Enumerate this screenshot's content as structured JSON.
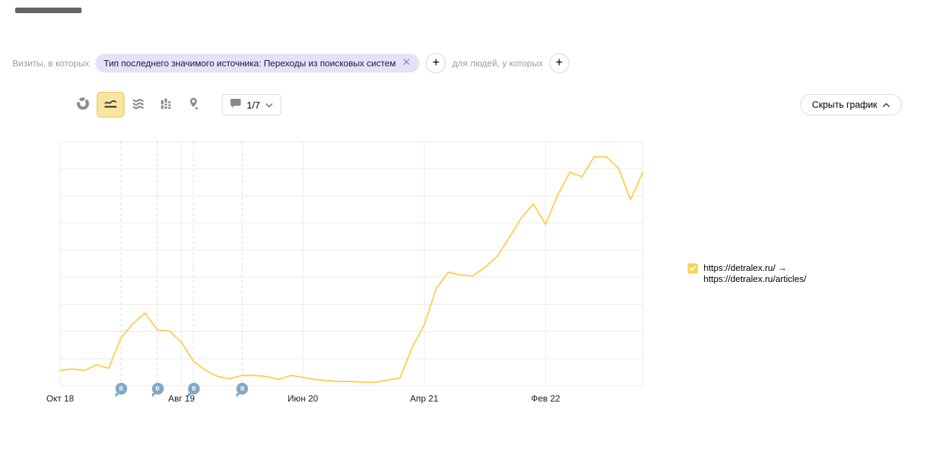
{
  "filters": {
    "visits_label": "Визиты, в которых",
    "chip_text": "Тип последнего значимого источника: Переходы из поисковых систем",
    "people_label": "для людей, у которых"
  },
  "toolbar": {
    "chart_types": [
      {
        "id": "pie",
        "selected": false
      },
      {
        "id": "line",
        "selected": true
      },
      {
        "id": "stacked",
        "selected": false
      },
      {
        "id": "columns",
        "selected": false
      },
      {
        "id": "map",
        "selected": false
      }
    ],
    "annotations_value": "1/7",
    "hide_chart_label": "Скрыть график"
  },
  "legend": {
    "line1": "https://detralex.ru/ →",
    "line2": "https://detralex.ru/articles/",
    "checkbox_color": "#ffd24d"
  },
  "chart_data": {
    "type": "line",
    "title": "",
    "xlabel": "",
    "ylabel": "",
    "y_axis_labels_visible": false,
    "y_gridlines": 9,
    "ylim": [
      0,
      100
    ],
    "y_units": "relative visits (no y-axis labels shown in screenshot)",
    "legend_position": "right",
    "x": [
      "2018-10",
      "2018-11",
      "2018-12",
      "2019-01",
      "2019-02",
      "2019-03",
      "2019-04",
      "2019-05",
      "2019-06",
      "2019-07",
      "2019-08",
      "2019-09",
      "2019-10",
      "2019-11",
      "2019-12",
      "2020-01",
      "2020-02",
      "2020-03",
      "2020-04",
      "2020-05",
      "2020-06",
      "2020-07",
      "2020-08",
      "2020-09",
      "2020-10",
      "2020-11",
      "2020-12",
      "2021-01",
      "2021-02",
      "2021-03",
      "2021-04",
      "2021-05",
      "2021-06",
      "2021-07",
      "2021-08",
      "2021-09",
      "2021-10",
      "2021-11",
      "2021-12",
      "2022-01",
      "2022-02",
      "2022-03",
      "2022-04",
      "2022-05",
      "2022-06",
      "2022-07",
      "2022-08",
      "2022-09",
      "2022-10"
    ],
    "xticks": [
      {
        "label": "Окт 18",
        "month_index": 0
      },
      {
        "label": "Авг 19",
        "month_index": 10
      },
      {
        "label": "Июн 20",
        "month_index": 20
      },
      {
        "label": "Апр 21",
        "month_index": 30
      },
      {
        "label": "Фев 22",
        "month_index": 40
      }
    ],
    "series": [
      {
        "name": "https://detralex.ru/ → https://detralex.ru/articles/",
        "color": "#ffce51",
        "values": [
          6.2,
          6.8,
          6.2,
          8.5,
          7.1,
          19.5,
          25.5,
          29.7,
          22.9,
          22.4,
          17.8,
          9.9,
          6.2,
          3.7,
          2.8,
          4.2,
          4.2,
          3.7,
          2.5,
          4.2,
          3.4,
          2.5,
          2.0,
          1.7,
          1.7,
          1.4,
          1.4,
          2.3,
          3.1,
          15.6,
          24.9,
          39.9,
          46.5,
          45.3,
          45.0,
          48.4,
          53.0,
          60.6,
          68.8,
          74.5,
          66.0,
          78.2,
          87.5,
          85.6,
          93.8,
          93.8,
          89.2,
          76.2,
          87.3
        ]
      }
    ],
    "annotations": [
      {
        "letter": "B",
        "month": "2019-03",
        "month_index": 5
      },
      {
        "letter": "B",
        "month": "2019-06",
        "month_index": 8
      },
      {
        "letter": "B",
        "month": "2019-09",
        "month_index": 11
      },
      {
        "letter": "B",
        "month": "2020-01",
        "month_index": 15
      }
    ],
    "annotation_marker_color": "#7fa8c9"
  }
}
